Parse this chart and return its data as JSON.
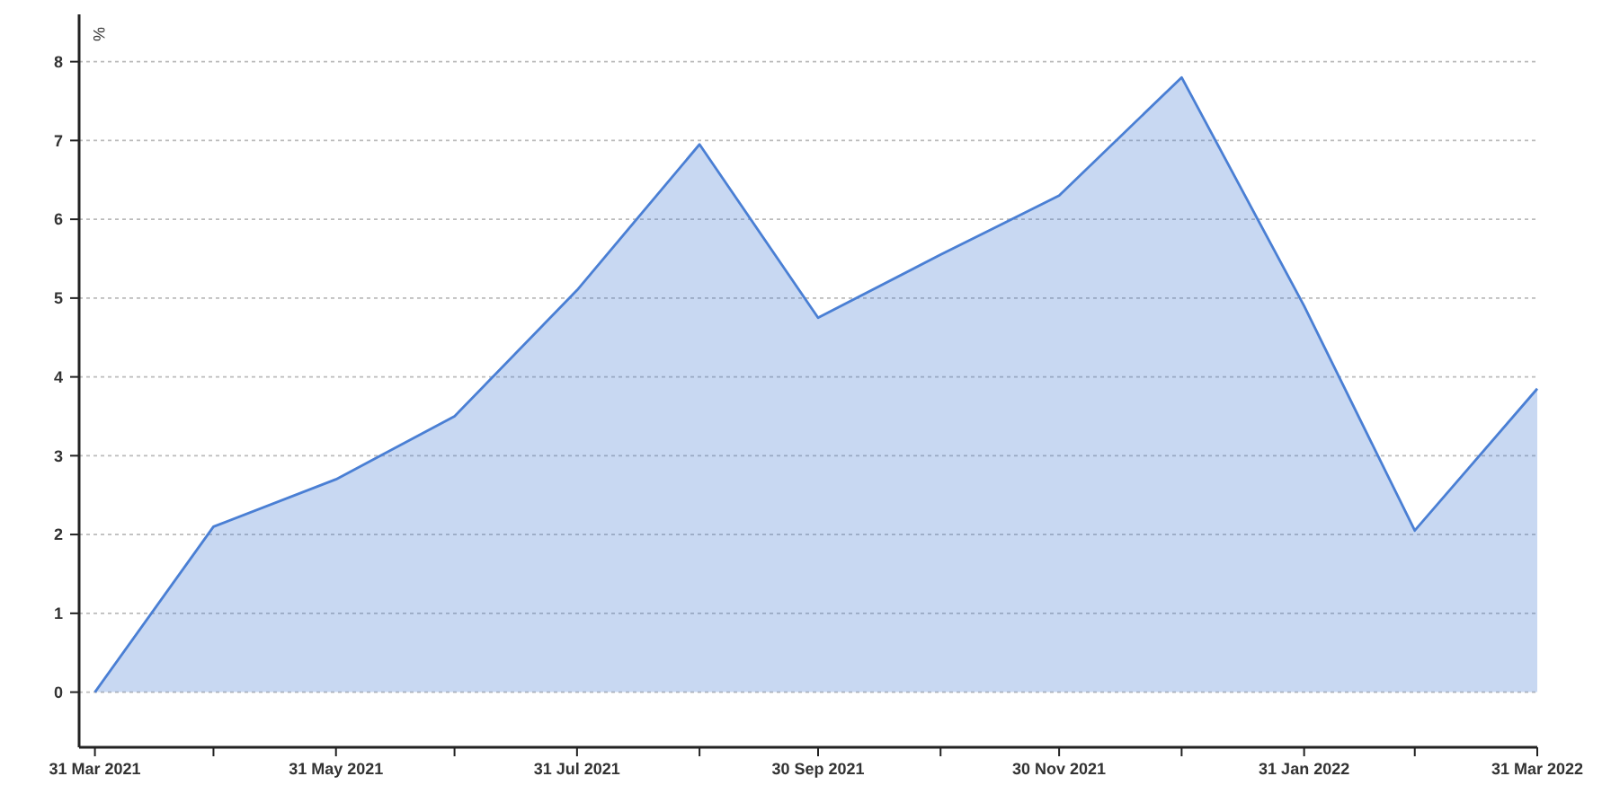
{
  "chart_data": {
    "type": "area",
    "ylabel": "%",
    "x": [
      "2021-03-31",
      "2021-04-30",
      "2021-05-31",
      "2021-06-30",
      "2021-07-31",
      "2021-08-31",
      "2021-09-30",
      "2021-10-31",
      "2021-11-30",
      "2021-12-31",
      "2022-01-31",
      "2022-02-28",
      "2022-03-31"
    ],
    "series": [
      {
        "color": "#4a7fd4",
        "values": [
          0,
          2.1,
          2.7,
          3.5,
          5.1,
          6.95,
          4.75,
          5.55,
          6.3,
          7.8,
          4.9,
          2.05,
          3.85
        ]
      }
    ],
    "xlim": [
      "2021-03-27",
      "2022-03-31"
    ],
    "xticks": [
      {
        "value": "2021-03-31",
        "label": "31 Mar 2021"
      },
      {
        "value": "2021-04-30",
        "label": null
      },
      {
        "value": "2021-05-31",
        "label": "31 May 2021"
      },
      {
        "value": "2021-06-30",
        "label": null
      },
      {
        "value": "2021-07-31",
        "label": "31 Jul 2021"
      },
      {
        "value": "2021-08-31",
        "label": null
      },
      {
        "value": "2021-09-30",
        "label": "30 Sep 2021"
      },
      {
        "value": "2021-10-31",
        "label": null
      },
      {
        "value": "2021-11-30",
        "label": "30 Nov 2021"
      },
      {
        "value": "2021-12-31",
        "label": null
      },
      {
        "value": "2022-01-31",
        "label": "31 Jan 2022"
      },
      {
        "value": "2022-02-28",
        "label": null
      },
      {
        "value": "2022-03-31",
        "label": "31 Mar 2022"
      }
    ],
    "ylim": [
      -0.7,
      8.6
    ],
    "yticks": [
      0,
      1,
      2,
      3,
      4,
      5,
      6,
      7,
      8
    ],
    "grid": "y"
  }
}
